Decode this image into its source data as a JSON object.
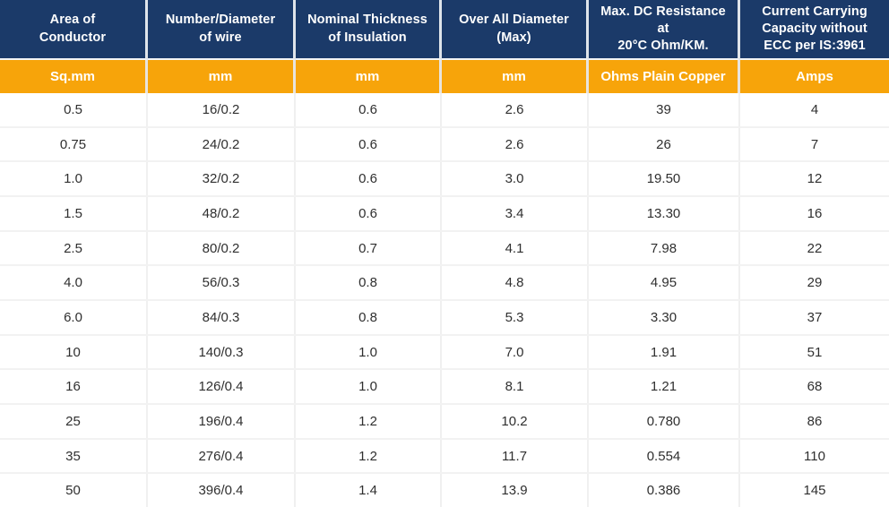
{
  "colors": {
    "header_bg": "#1b3a69",
    "subheader_bg": "#f7a40a",
    "header_text": "#ffffff",
    "body_text": "#2f2f2f",
    "grid_line": "#f0f0f0"
  },
  "table": {
    "columns": [
      {
        "title": "Area of\nConductor",
        "unit": "Sq.mm"
      },
      {
        "title": "Number/Diameter\nof wire",
        "unit": "mm"
      },
      {
        "title": "Nominal Thickness\nof Insulation",
        "unit": "mm"
      },
      {
        "title": "Over All Diameter\n(Max)",
        "unit": "mm"
      },
      {
        "title": "Max. DC Resistance\nat\n20°C Ohm/KM.",
        "unit": "Ohms Plain Copper"
      },
      {
        "title": "Current Carrying\nCapacity without\nECC per IS:3961",
        "unit": "Amps"
      }
    ],
    "rows": [
      [
        "0.5",
        "16/0.2",
        "0.6",
        "2.6",
        "39",
        "4"
      ],
      [
        "0.75",
        "24/0.2",
        "0.6",
        "2.6",
        "26",
        "7"
      ],
      [
        "1.0",
        "32/0.2",
        "0.6",
        "3.0",
        "19.50",
        "12"
      ],
      [
        "1.5",
        "48/0.2",
        "0.6",
        "3.4",
        "13.30",
        "16"
      ],
      [
        "2.5",
        "80/0.2",
        "0.7",
        "4.1",
        "7.98",
        "22"
      ],
      [
        "4.0",
        "56/0.3",
        "0.8",
        "4.8",
        "4.95",
        "29"
      ],
      [
        "6.0",
        "84/0.3",
        "0.8",
        "5.3",
        "3.30",
        "37"
      ],
      [
        "10",
        "140/0.3",
        "1.0",
        "7.0",
        "1.91",
        "51"
      ],
      [
        "16",
        "126/0.4",
        "1.0",
        "8.1",
        "1.21",
        "68"
      ],
      [
        "25",
        "196/0.4",
        "1.2",
        "10.2",
        "0.780",
        "86"
      ],
      [
        "35",
        "276/0.4",
        "1.2",
        "11.7",
        "0.554",
        "110"
      ],
      [
        "50",
        "396/0.4",
        "1.4",
        "13.9",
        "0.386",
        "145"
      ]
    ]
  }
}
